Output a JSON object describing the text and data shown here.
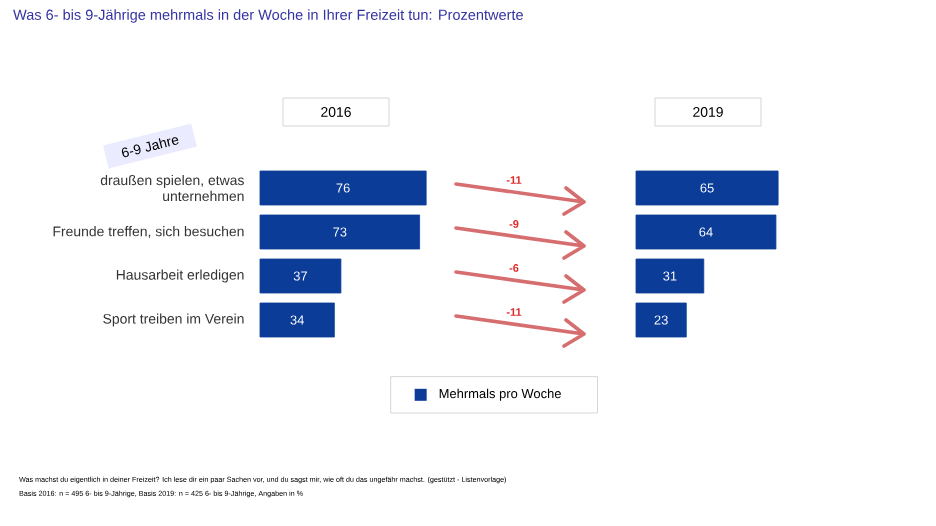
{
  "chart_data": [
    {
      "type": "bar",
      "orientation": "horizontal",
      "title": "Was 6- bis 9-Jährige mehrmals in der Woche in Ihrer Freizeit tun: Prozentwerte",
      "subtitle": "2016",
      "categories": [
        "draußen spielen, etwas unternehmen",
        "Freunde treffen, sich besuchen",
        "Hausarbeit erledigen",
        "Sport treiben im Verein"
      ],
      "series": [
        {
          "color": "#0a3c98",
          "values": [
            76,
            73,
            37,
            34
          ]
        }
      ],
      "data_labels": true,
      "annotations": [
        "6-9 Jahre",
        "Was machst du eigentlich in deiner Freizeit? Ich lese dir ein paar Sachen vor, und du sagst mir, wie oft du das ungefähr machst. (gestützt - Listenvorlage)",
        "Basis 2016: n = 495 6- bis 9-Jährige, Basis 2019: n = 425  6- bis 9-Jährige, Angaben in %"
      ]
    },
    {
      "type": "bar",
      "orientation": "horizontal",
      "title": "2019",
      "categories": [
        null,
        null,
        null,
        null
      ],
      "series": [
        {
          "name": "Mehrmals pro Woche",
          "color": "#0a3c98",
          "values": [
            65,
            64,
            31,
            23
          ]
        }
      ],
      "data_labels": true,
      "legend": "bottom",
      "annotations": [
        "-11",
        "-9",
        "-6",
        "-11"
      ]
    }
  ]
}
